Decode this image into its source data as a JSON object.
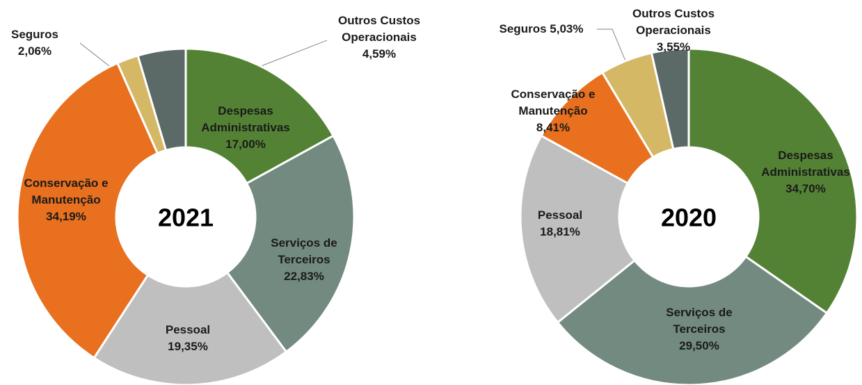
{
  "chart_data": [
    {
      "type": "pie",
      "title": "2021",
      "categories": [
        "Despesas Administrativas",
        "Serviços de Terceiros",
        "Pessoal",
        "Conservação e Manutenção",
        "Seguros",
        "Outros Custos Operacionais"
      ],
      "values": [
        17.0,
        22.83,
        19.35,
        34.19,
        2.06,
        4.59
      ],
      "value_labels": [
        "17,00%",
        "22,83%",
        "19,35%",
        "34,19%",
        "2,06%",
        "4,59%"
      ],
      "colors": [
        "#548235",
        "#728a80",
        "#bfbfbf",
        "#e8701f",
        "#d4b865",
        "#5b6a67"
      ]
    },
    {
      "type": "pie",
      "title": "2020",
      "categories": [
        "Despesas Administrativas",
        "Serviços de Terceiros",
        "Pessoal",
        "Conservação e Manutenção",
        "Seguros",
        "Outros Custos Operacionais"
      ],
      "values": [
        34.7,
        29.5,
        18.81,
        8.41,
        5.03,
        3.55
      ],
      "value_labels": [
        "34,70%",
        "29,50%",
        "18,81%",
        "8,41%",
        "5,03%",
        "3,55%"
      ],
      "colors": [
        "#548235",
        "#728a80",
        "#bfbfbf",
        "#e8701f",
        "#d4b865",
        "#5b6a67"
      ]
    }
  ]
}
